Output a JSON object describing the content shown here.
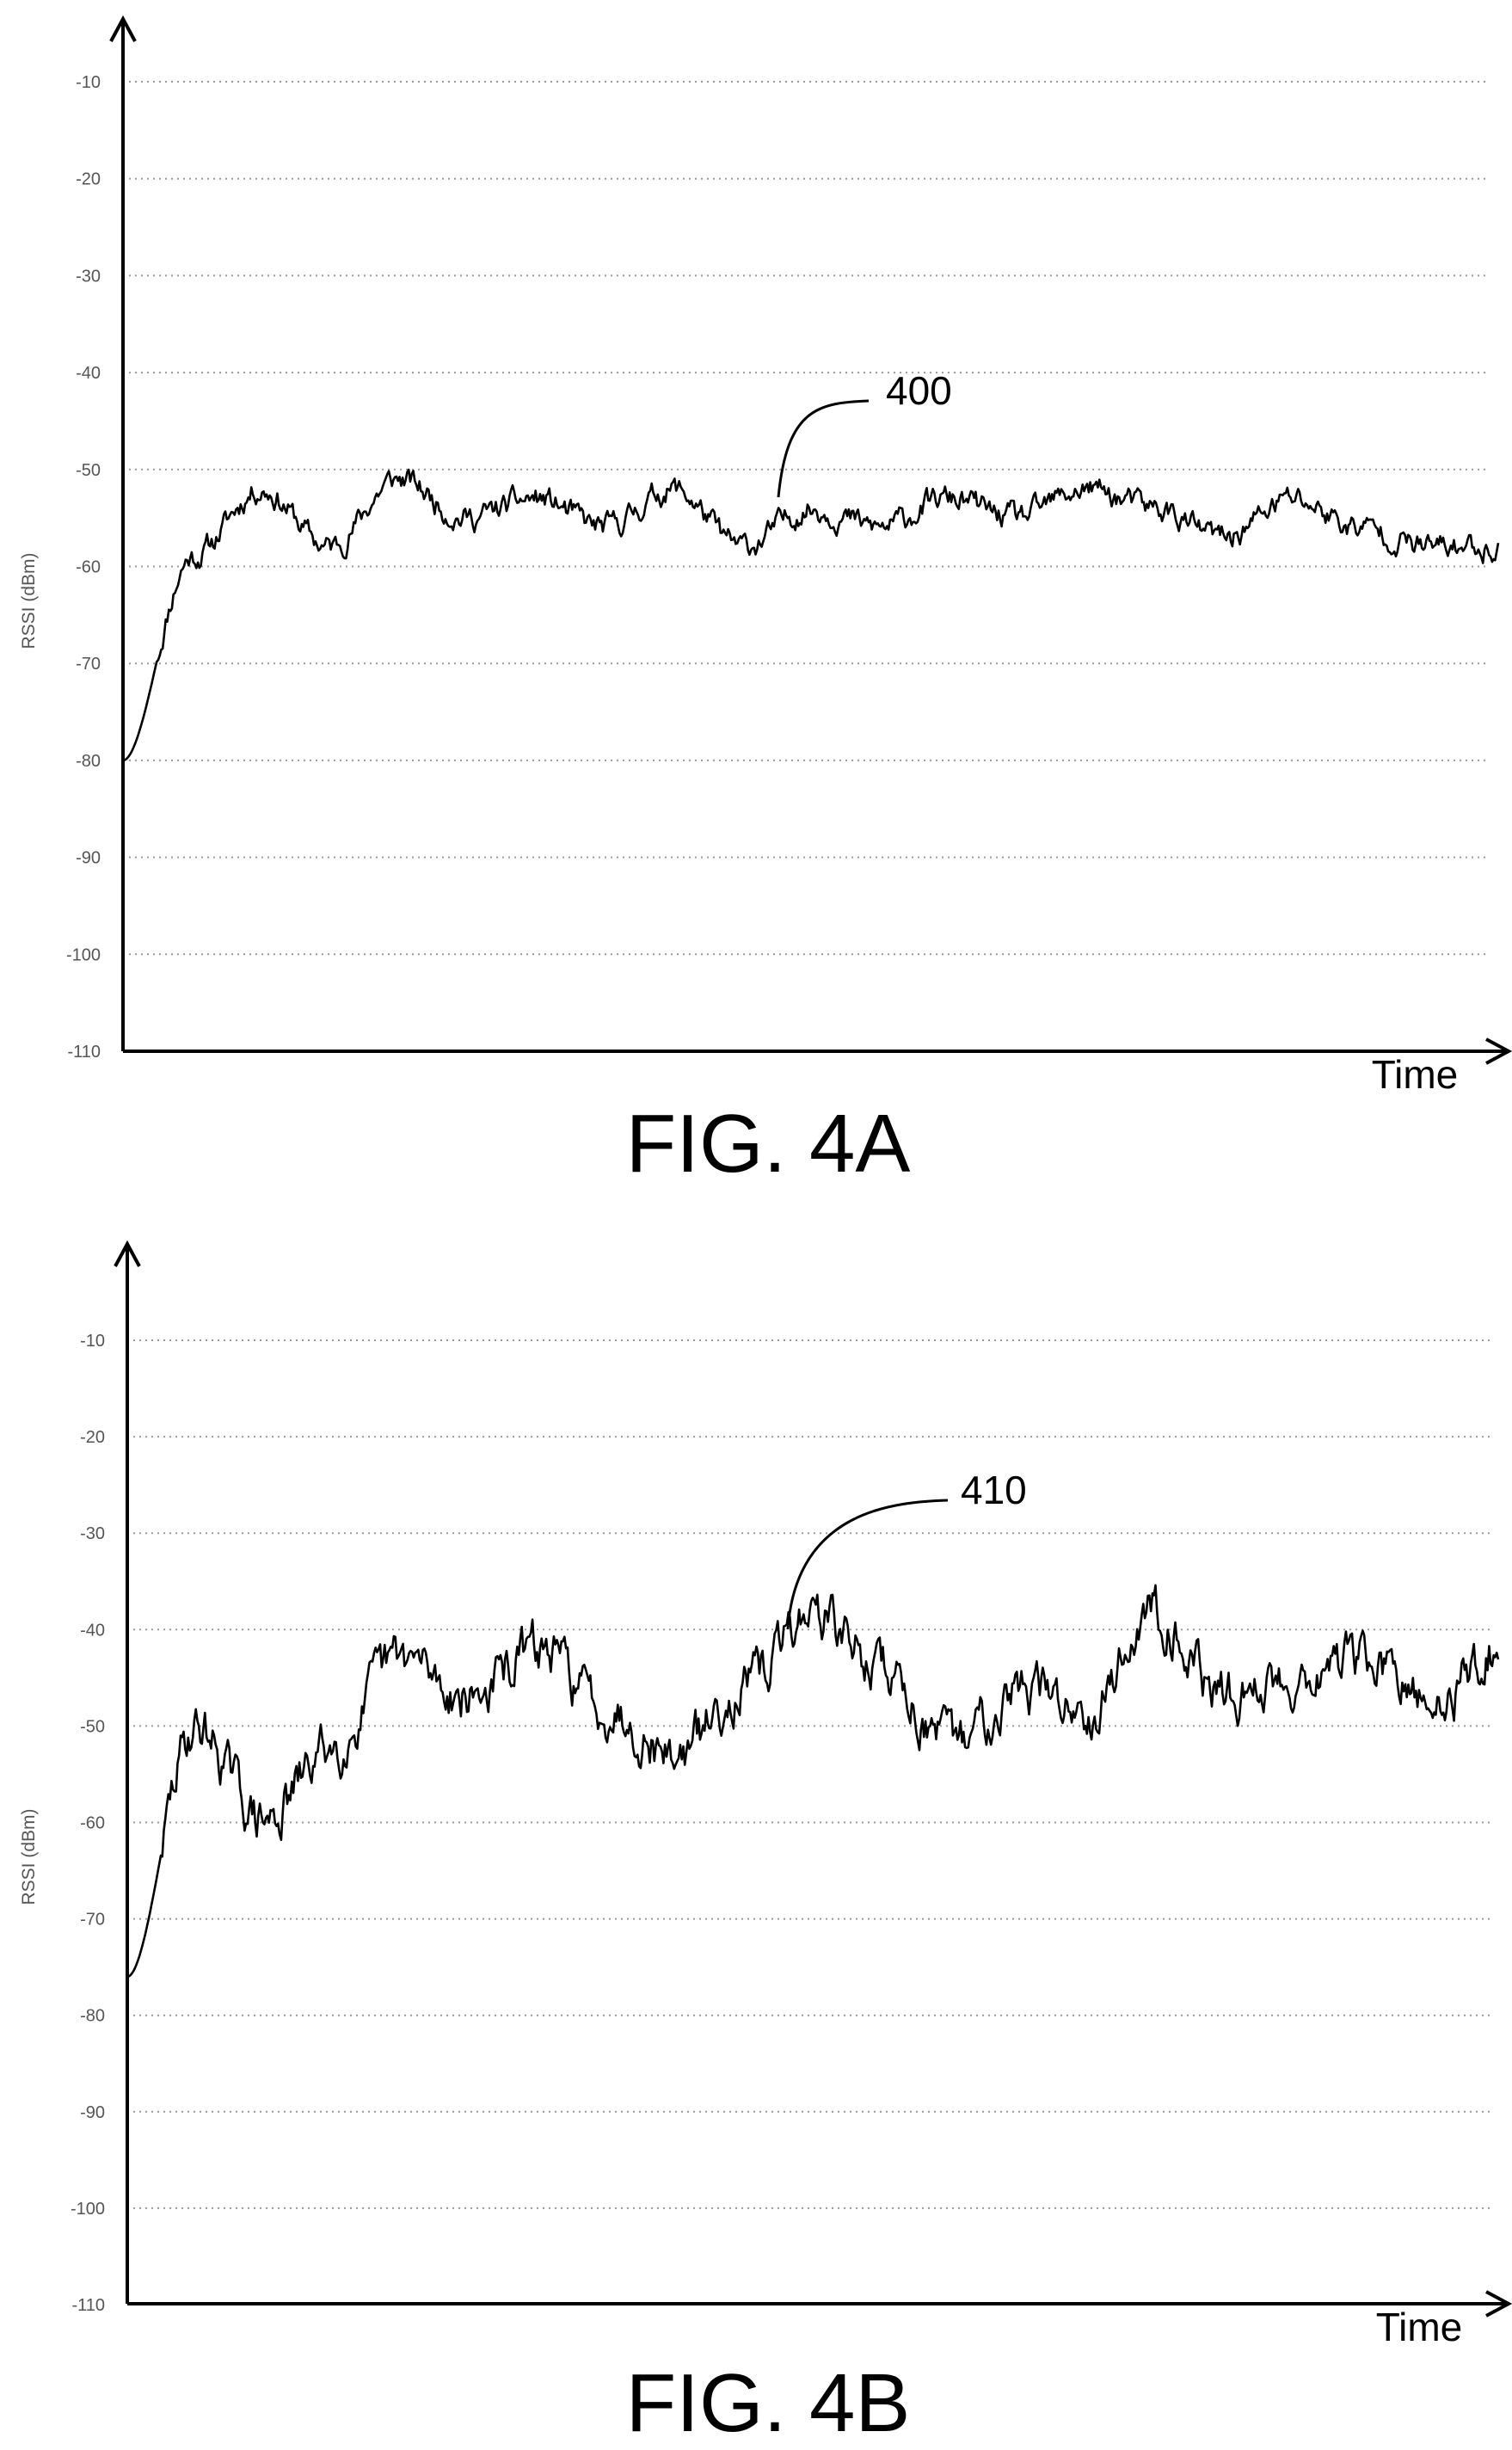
{
  "chart_data": [
    {
      "type": "line",
      "figure_label": "FIG. 4A",
      "ylabel": "RSSI (dBm)",
      "xlabel": "Time",
      "ylim": [
        -110,
        -4
      ],
      "yticks": [
        -10,
        -20,
        -30,
        -40,
        -50,
        -60,
        -70,
        -80,
        -90,
        -100,
        -110
      ],
      "ytick_labels": [
        "-10",
        "-20",
        "-30",
        "-40",
        "-50",
        "-60",
        "-70",
        "-80",
        "-90",
        "-100",
        "-110"
      ],
      "grid": true,
      "legend": "none",
      "series": [
        {
          "reference": "400",
          "x": [
            0,
            5,
            10,
            15,
            20,
            25,
            30,
            35,
            40,
            45,
            50,
            55,
            60,
            65,
            70,
            75,
            80,
            85,
            90,
            95,
            100
          ],
          "y": [
            -80,
            -59,
            -52,
            -58,
            -51,
            -55,
            -53,
            -56,
            -52,
            -58,
            -54,
            -56,
            -53,
            -55,
            -52,
            -54,
            -57,
            -53,
            -56,
            -58,
            -58
          ]
        }
      ],
      "annotations": [
        {
          "text": "400",
          "x": 48,
          "y": -55
        }
      ]
    },
    {
      "type": "line",
      "figure_label": "FIG. 4B",
      "ylabel": "RSSI (dBm)",
      "xlabel": "Time",
      "ylim": [
        -110,
        -4
      ],
      "yticks": [
        -10,
        -20,
        -30,
        -40,
        -50,
        -60,
        -70,
        -80,
        -90,
        -100,
        -110
      ],
      "ytick_labels": [
        "-10",
        "-20",
        "-30",
        "-40",
        "-50",
        "-60",
        "-70",
        "-80",
        "-90",
        "-100",
        "-110"
      ],
      "grid": true,
      "legend": "none",
      "series": [
        {
          "reference": "410",
          "x": [
            0,
            5,
            10,
            15,
            20,
            25,
            30,
            35,
            40,
            45,
            50,
            55,
            60,
            65,
            70,
            75,
            80,
            85,
            90,
            95,
            100
          ],
          "y": [
            -76,
            -50,
            -60,
            -52,
            -43,
            -47,
            -42,
            -48,
            -53,
            -46,
            -38,
            -44,
            -52,
            -46,
            -48,
            -38,
            -47,
            -45,
            -43,
            -48,
            -42
          ]
        }
      ],
      "annotations": [
        {
          "text": "410",
          "x": 48,
          "y": -40
        }
      ]
    }
  ]
}
